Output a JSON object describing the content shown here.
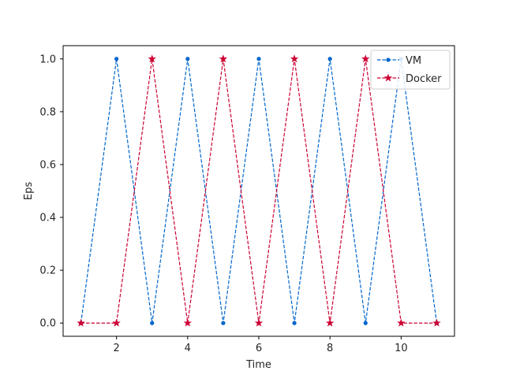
{
  "chart_data": {
    "type": "line",
    "title": "",
    "xlabel": "Time",
    "ylabel": "Eps",
    "xlim": [
      0.5,
      11.5
    ],
    "ylim": [
      -0.05,
      1.05
    ],
    "xticks": [
      2,
      4,
      6,
      8,
      10
    ],
    "yticks": [
      0.0,
      0.2,
      0.4,
      0.6,
      0.8,
      1.0
    ],
    "grid": false,
    "legend_position": "top-right",
    "x": [
      1,
      2,
      3,
      4,
      5,
      6,
      7,
      8,
      9,
      10,
      11
    ],
    "series": [
      {
        "name": "VM",
        "color": "#0066cc",
        "marker": "dot",
        "line_style": "dashed",
        "values": [
          0,
          1,
          0,
          1,
          0,
          1,
          0,
          1,
          0,
          1,
          0
        ]
      },
      {
        "name": "Docker",
        "color": "#cc0033",
        "marker": "star",
        "line_style": "dashed",
        "values": [
          0,
          0,
          1,
          0,
          1,
          0,
          1,
          0,
          1,
          0,
          0
        ]
      }
    ]
  }
}
